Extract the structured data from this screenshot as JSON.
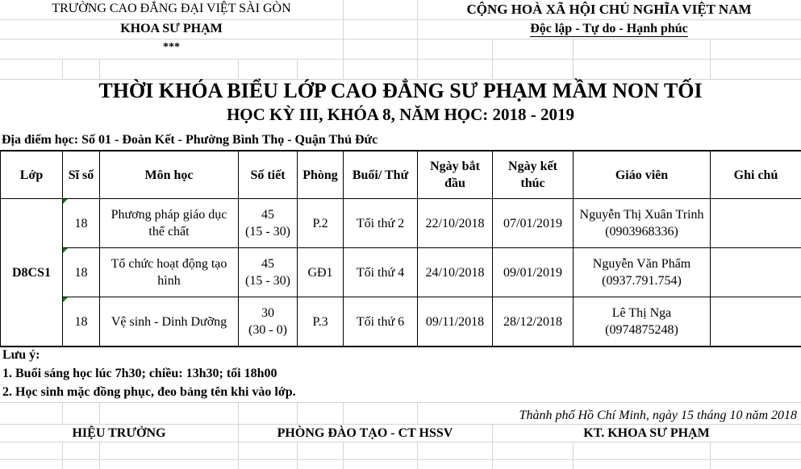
{
  "header": {
    "school": "TRƯỜNG CAO ĐẲNG ĐẠI VIỆT SÀI GÒN",
    "department": "KHOA SƯ PHẠM",
    "stars": "***",
    "country": "CỘNG HOÀ XÃ HỘI CHỦ NGHĨA VIỆT NAM",
    "motto": "Độc lập - Tự do - Hạnh phúc"
  },
  "title": "THỜI KHÓA BIỂU LỚP CAO ĐẲNG SƯ PHẠM MẦM NON TỐI",
  "subtitle": "HỌC KỲ III, KHÓA 8, NĂM HỌC: 2018 - 2019",
  "location": "Địa điểm học: Số 01 - Đoàn Kết - Phường Bình Thọ - Quận Thủ Đức",
  "table": {
    "headers": [
      "Lớp",
      "Sĩ số",
      "Môn học",
      "Số tiết",
      "Phòng",
      "Buổi/ Thứ",
      "Ngày bắt đầu",
      "Ngày kết thúc",
      "Giáo viên",
      "Ghi chú"
    ],
    "class": "D8CS1",
    "rows": [
      {
        "size": "18",
        "subject": "Phương pháp giáo dục thể chất",
        "periods": "45",
        "periods_split": "(15 - 30)",
        "room": "P.2",
        "session": "Tối thứ 2",
        "start": "22/10/2018",
        "end": "07/01/2019",
        "teacher": "Nguyễn Thị Xuân Trinh",
        "phone": "(0903968336)",
        "note": ""
      },
      {
        "size": "18",
        "subject": "Tổ chức hoạt động tạo hình",
        "periods": "45",
        "periods_split": "(15 - 30)",
        "room": "GĐ1",
        "session": "Tối thứ 4",
        "start": "24/10/2018",
        "end": "09/01/2019",
        "teacher": "Nguyễn Văn Phẩm",
        "phone": "(0937.791.754)",
        "note": ""
      },
      {
        "size": "18",
        "subject": "Vệ sinh - Dinh Dưỡng",
        "periods": "30",
        "periods_split": "(30 - 0)",
        "room": "P.3",
        "session": "Tối thứ 6",
        "start": "09/11/2018",
        "end": "28/12/2018",
        "teacher": "Lê Thị Nga",
        "phone": "(0974875248)",
        "note": ""
      }
    ]
  },
  "notes": {
    "heading": "Lưu ý:",
    "items": [
      "1. Buổi sáng học lúc 7h30; chiều: 13h30; tối 18h00",
      "2. Học sinh mặc đồng phục, đeo bảng tên khi vào lớp."
    ]
  },
  "date_line": "Thành phố Hồ Chí Minh, ngày 15 tháng 10 năm 2018",
  "signatures": [
    "HIỆU TRƯỞNG",
    "PHÒNG ĐÀO TẠO - CT HSSV",
    "KT. KHOA SƯ PHẠM"
  ]
}
